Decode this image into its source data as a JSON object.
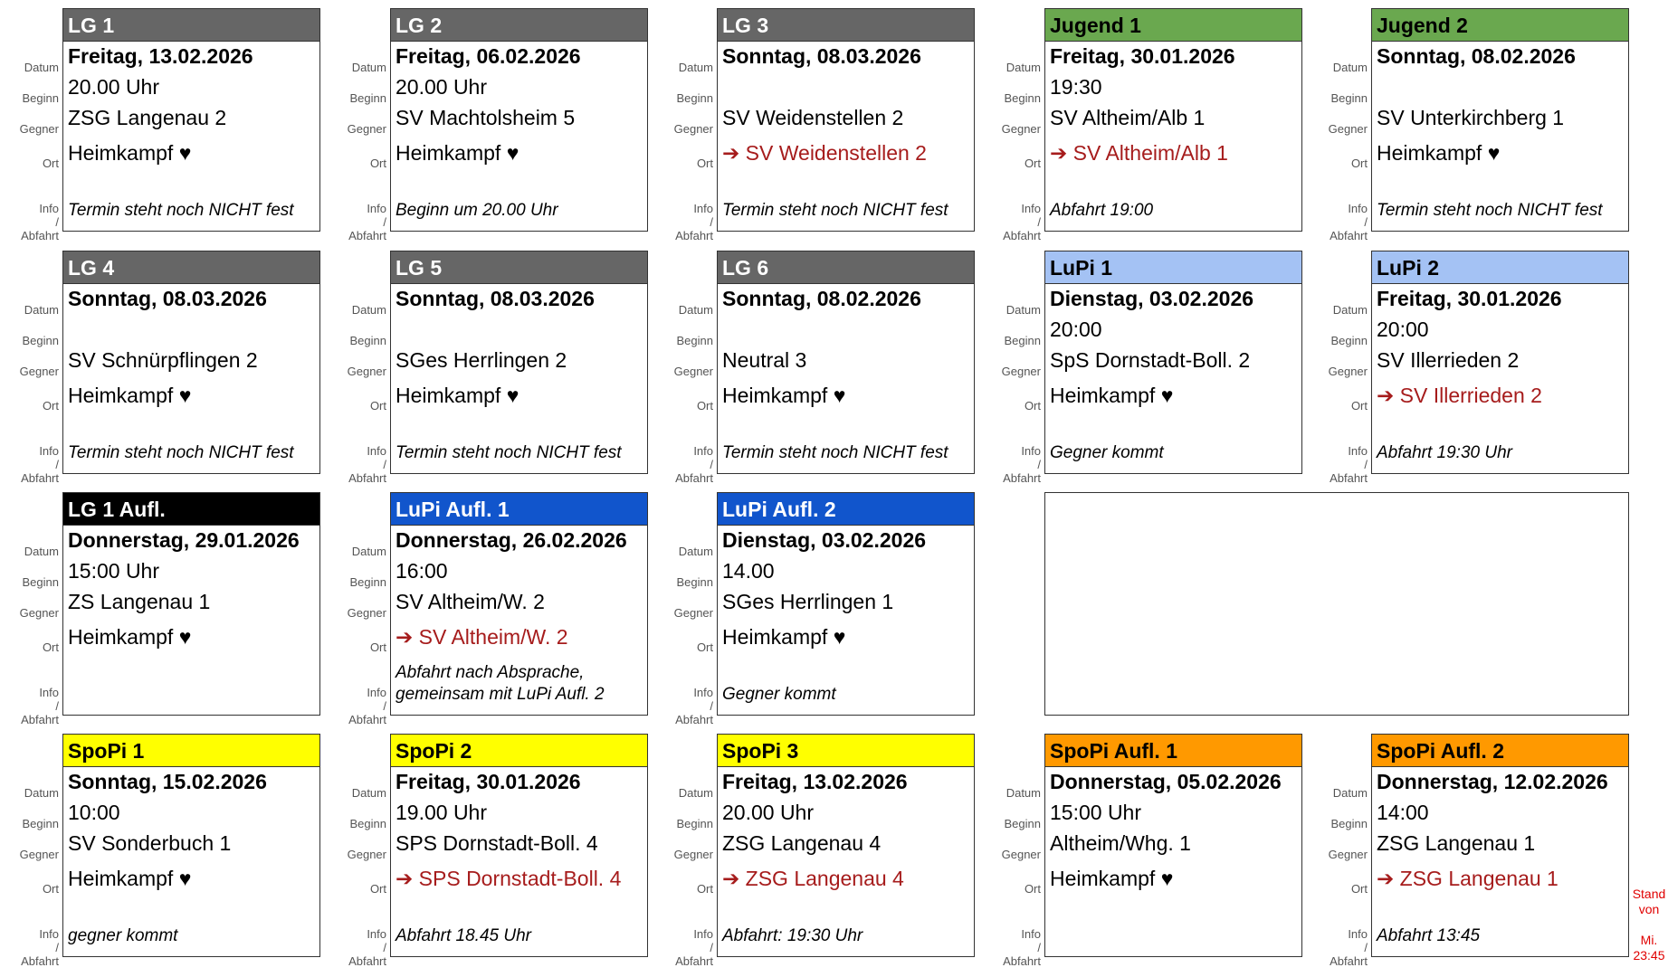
{
  "labels": {
    "datum": "Datum",
    "beginn": "Beginn",
    "gegner": "Gegner",
    "ort": "Ort",
    "info": "Info / Abfahrt"
  },
  "timestamp": [
    "Stand",
    "von",
    "Mi.",
    "23:45"
  ],
  "cards": [
    {
      "title": "LG 1",
      "header_color": "#666666",
      "header_text": "#ffffff",
      "datum": "Freitag, 13.02.2026",
      "beginn": "20.00 Uhr",
      "gegner": "ZSG Langenau 2",
      "ort": "Heimkampf ♥",
      "away": false,
      "info": "Termin steht noch NICHT fest"
    },
    {
      "title": "LG 2",
      "header_color": "#666666",
      "header_text": "#ffffff",
      "datum": "Freitag, 06.02.2026",
      "beginn": "20.00 Uhr",
      "gegner": "SV Machtolsheim 5",
      "ort": "Heimkampf ♥",
      "away": false,
      "info": "Beginn um 20.00 Uhr"
    },
    {
      "title": "LG 3",
      "header_color": "#666666",
      "header_text": "#ffffff",
      "datum": "Sonntag, 08.03.2026",
      "beginn": null,
      "gegner": "SV Weidenstellen 2",
      "ort": "➔ SV Weidenstellen 2",
      "away": true,
      "info": "Termin steht noch NICHT fest"
    },
    {
      "title": "Jugend 1",
      "header_color": "#6aa84f",
      "header_text": "#000000",
      "datum": "Freitag, 30.01.2026",
      "beginn": "19:30",
      "gegner": "SV Altheim/Alb 1",
      "ort": "➔ SV Altheim/Alb 1",
      "away": true,
      "info": "Abfahrt 19:00"
    },
    {
      "title": "Jugend 2",
      "header_color": "#6aa84f",
      "header_text": "#000000",
      "datum": "Sonntag, 08.02.2026",
      "beginn": null,
      "gegner": "SV Unterkirchberg 1",
      "ort": "Heimkampf ♥",
      "away": false,
      "info": "Termin steht noch NICHT fest"
    },
    {
      "title": "LG 4",
      "header_color": "#666666",
      "header_text": "#ffffff",
      "datum": "Sonntag, 08.03.2026",
      "beginn": null,
      "gegner": "SV Schnürpflingen 2",
      "ort": "Heimkampf ♥",
      "away": false,
      "info": "Termin steht noch NICHT fest"
    },
    {
      "title": "LG 5",
      "header_color": "#666666",
      "header_text": "#ffffff",
      "datum": "Sonntag, 08.03.2026",
      "beginn": null,
      "gegner": "SGes Herrlingen 2",
      "ort": "Heimkampf ♥",
      "away": false,
      "info": "Termin steht noch NICHT fest"
    },
    {
      "title": "LG 6",
      "header_color": "#666666",
      "header_text": "#ffffff",
      "datum": "Sonntag, 08.02.2026",
      "beginn": null,
      "gegner": "Neutral 3",
      "ort": "Heimkampf ♥",
      "away": false,
      "info": "Termin steht noch NICHT fest"
    },
    {
      "title": "LuPi 1",
      "header_color": "#a4c2f4",
      "header_text": "#000000",
      "datum": "Dienstag, 03.02.2026",
      "beginn": "20:00",
      "gegner": "SpS Dornstadt-Boll. 2",
      "ort": "Heimkampf ♥",
      "away": false,
      "info": "Gegner kommt"
    },
    {
      "title": "LuPi 2",
      "header_color": "#a4c2f4",
      "header_text": "#000000",
      "datum": "Freitag, 30.01.2026",
      "beginn": "20:00",
      "gegner": "SV Illerrieden 2",
      "ort": "➔ SV Illerrieden 2",
      "away": true,
      "info": "Abfahrt 19:30 Uhr"
    },
    {
      "title": "LG 1 Aufl.",
      "header_color": "#000000",
      "header_text": "#ffffff",
      "datum": "Donnerstag, 29.01.2026",
      "beginn": "15:00 Uhr",
      "gegner": "ZS Langenau 1",
      "ort": "Heimkampf ♥",
      "away": false,
      "info": null
    },
    {
      "title": "LuPi Aufl. 1",
      "header_color": "#1155cc",
      "header_text": "#ffffff",
      "datum": "Donnerstag, 26.02.2026",
      "beginn": "16:00",
      "gegner": "SV Altheim/W. 2",
      "ort": "➔ SV Altheim/W. 2",
      "away": true,
      "info": "Abfahrt nach Absprache, gemeinsam mit LuPi Aufl. 2"
    },
    {
      "title": "LuPi Aufl. 2",
      "header_color": "#1155cc",
      "header_text": "#ffffff",
      "datum": "Dienstag, 03.02.2026",
      "beginn": "14.00",
      "gegner": "SGes Herrlingen 1",
      "ort": "Heimkampf ♥",
      "away": false,
      "info": "Gegner kommt"
    },
    {
      "title": "SpoPi 1",
      "header_color": "#ffff00",
      "header_text": "#000000",
      "datum": "Sonntag, 15.02.2026",
      "beginn": "10:00",
      "gegner": "SV Sonderbuch 1",
      "ort": "Heimkampf ♥",
      "away": false,
      "info": "gegner kommt"
    },
    {
      "title": "SpoPi 2",
      "header_color": "#ffff00",
      "header_text": "#000000",
      "datum": "Freitag, 30.01.2026",
      "beginn": "19.00 Uhr",
      "gegner": "SPS Dornstadt-Boll. 4",
      "ort": "➔ SPS Dornstadt-Boll. 4",
      "away": true,
      "info": "Abfahrt 18.45 Uhr"
    },
    {
      "title": "SpoPi 3",
      "header_color": "#ffff00",
      "header_text": "#000000",
      "datum": "Freitag, 13.02.2026",
      "beginn": "20.00 Uhr",
      "gegner": "ZSG Langenau 4",
      "ort": "➔ ZSG Langenau 4",
      "away": true,
      "info": "Abfahrt: 19:30 Uhr"
    },
    {
      "title": "SpoPi Aufl. 1",
      "header_color": "#ff9900",
      "header_text": "#000000",
      "datum": "Donnerstag, 05.02.2026",
      "beginn": "15:00 Uhr",
      "gegner": "Altheim/Whg. 1",
      "ort": "Heimkampf ♥",
      "away": false,
      "info": null
    },
    {
      "title": "SpoPi Aufl. 2",
      "header_color": "#ff9900",
      "header_text": "#000000",
      "datum": "Donnerstag, 12.02.2026",
      "beginn": "14:00",
      "gegner": "ZSG Langenau 1",
      "ort": "➔ ZSG Langenau 1",
      "away": true,
      "info": "Abfahrt 13:45"
    }
  ]
}
